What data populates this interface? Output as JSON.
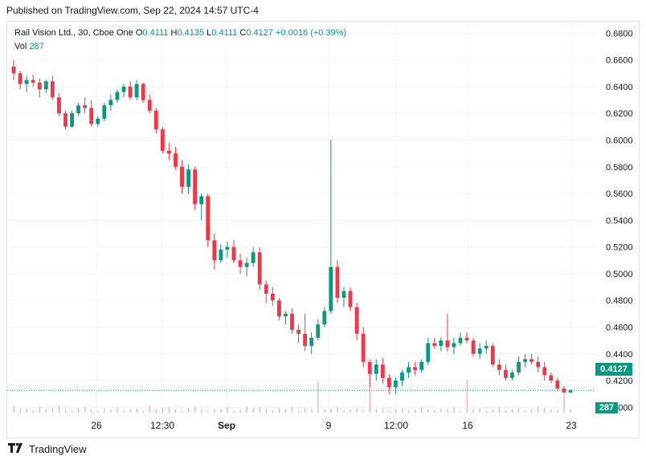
{
  "header": {
    "published": "Published on TradingView.com, Sep 22, 2024 14:57 UTC-4"
  },
  "legend": {
    "symbol": "Rail Vision Ltd., 30, Cboe One",
    "o_label": "O",
    "o_value": "0.4111",
    "h_label": "H",
    "h_value": "0.4135",
    "l_label": "L",
    "l_value": "0.4111",
    "c_label": "C",
    "c_value": "0.4127",
    "change": "+0.0016 (+0.39%)",
    "vol_label": "Vol",
    "vol_value": "287"
  },
  "badges": {
    "last_price": "0.4127",
    "last_volume": "287"
  },
  "footer": {
    "brand": "TradingView",
    "logo": "tradingview-logo-icon"
  },
  "colors": {
    "up": "#089981",
    "down": "#f23645",
    "grid": "#f0f3fa",
    "axis_text": "#131722"
  },
  "chart_data": {
    "type": "candlestick",
    "y_axis": {
      "ticks": [
        "0.6800",
        "0.6600",
        "0.6400",
        "0.6200",
        "0.6000",
        "0.5800",
        "0.5600",
        "0.5400",
        "0.5200",
        "0.5000",
        "0.4800",
        "0.4600",
        "0.4400",
        "0.4200",
        "0.4000"
      ],
      "ylim": [
        0.396,
        0.688
      ]
    },
    "x_axis": {
      "ticks": [
        "26",
        "12:30",
        "Sep",
        "9",
        "12:00",
        "16",
        "23"
      ]
    },
    "last_close": 0.4127,
    "candles": [
      [
        0.655,
        0.66,
        0.645,
        0.65
      ],
      [
        0.65,
        0.652,
        0.638,
        0.642
      ],
      [
        0.642,
        0.648,
        0.636,
        0.645
      ],
      [
        0.645,
        0.649,
        0.64,
        0.643
      ],
      [
        0.643,
        0.646,
        0.632,
        0.638
      ],
      [
        0.638,
        0.645,
        0.635,
        0.644
      ],
      [
        0.644,
        0.648,
        0.63,
        0.632
      ],
      [
        0.632,
        0.635,
        0.618,
        0.62
      ],
      [
        0.62,
        0.622,
        0.608,
        0.61
      ],
      [
        0.61,
        0.622,
        0.609,
        0.62
      ],
      [
        0.62,
        0.628,
        0.618,
        0.626
      ],
      [
        0.626,
        0.632,
        0.62,
        0.624
      ],
      [
        0.624,
        0.63,
        0.61,
        0.612
      ],
      [
        0.612,
        0.618,
        0.61,
        0.616
      ],
      [
        0.616,
        0.628,
        0.614,
        0.626
      ],
      [
        0.626,
        0.634,
        0.622,
        0.63
      ],
      [
        0.63,
        0.638,
        0.628,
        0.636
      ],
      [
        0.636,
        0.642,
        0.632,
        0.64
      ],
      [
        0.64,
        0.644,
        0.63,
        0.632
      ],
      [
        0.632,
        0.645,
        0.63,
        0.642
      ],
      [
        0.642,
        0.643,
        0.628,
        0.63
      ],
      [
        0.63,
        0.634,
        0.62,
        0.622
      ],
      [
        0.622,
        0.624,
        0.605,
        0.608
      ],
      [
        0.608,
        0.61,
        0.59,
        0.592
      ],
      [
        0.592,
        0.598,
        0.585,
        0.59
      ],
      [
        0.59,
        0.595,
        0.578,
        0.58
      ],
      [
        0.58,
        0.585,
        0.56,
        0.565
      ],
      [
        0.565,
        0.582,
        0.56,
        0.578
      ],
      [
        0.578,
        0.58,
        0.548,
        0.552
      ],
      [
        0.552,
        0.56,
        0.54,
        0.558
      ],
      [
        0.558,
        0.56,
        0.52,
        0.525
      ],
      [
        0.525,
        0.53,
        0.503,
        0.51
      ],
      [
        0.51,
        0.522,
        0.508,
        0.518
      ],
      [
        0.518,
        0.524,
        0.512,
        0.52
      ],
      [
        0.52,
        0.525,
        0.508,
        0.51
      ],
      [
        0.51,
        0.515,
        0.5,
        0.505
      ],
      [
        0.505,
        0.512,
        0.498,
        0.508
      ],
      [
        0.508,
        0.52,
        0.505,
        0.516
      ],
      [
        0.516,
        0.52,
        0.488,
        0.492
      ],
      [
        0.492,
        0.495,
        0.478,
        0.485
      ],
      [
        0.485,
        0.49,
        0.476,
        0.48
      ],
      [
        0.48,
        0.482,
        0.465,
        0.468
      ],
      [
        0.468,
        0.472,
        0.462,
        0.47
      ],
      [
        0.47,
        0.474,
        0.455,
        0.458
      ],
      [
        0.458,
        0.462,
        0.448,
        0.455
      ],
      [
        0.455,
        0.47,
        0.442,
        0.446
      ],
      [
        0.446,
        0.456,
        0.44,
        0.452
      ],
      [
        0.452,
        0.466,
        0.45,
        0.462
      ],
      [
        0.462,
        0.475,
        0.46,
        0.472
      ],
      [
        0.472,
        0.6,
        0.47,
        0.505
      ],
      [
        0.505,
        0.51,
        0.478,
        0.482
      ],
      [
        0.482,
        0.49,
        0.475,
        0.487
      ],
      [
        0.487,
        0.49,
        0.472,
        0.475
      ],
      [
        0.475,
        0.478,
        0.45,
        0.455
      ],
      [
        0.455,
        0.46,
        0.43,
        0.434
      ],
      [
        0.434,
        0.436,
        0.415,
        0.425
      ],
      [
        0.425,
        0.436,
        0.42,
        0.432
      ],
      [
        0.432,
        0.437,
        0.418,
        0.422
      ],
      [
        0.422,
        0.425,
        0.41,
        0.415
      ],
      [
        0.415,
        0.422,
        0.41,
        0.42
      ],
      [
        0.42,
        0.428,
        0.416,
        0.426
      ],
      [
        0.426,
        0.434,
        0.422,
        0.43
      ],
      [
        0.43,
        0.434,
        0.424,
        0.428
      ],
      [
        0.428,
        0.436,
        0.426,
        0.434
      ],
      [
        0.434,
        0.452,
        0.432,
        0.448
      ],
      [
        0.448,
        0.452,
        0.444,
        0.446
      ],
      [
        0.446,
        0.452,
        0.442,
        0.45
      ],
      [
        0.45,
        0.47,
        0.442,
        0.445
      ],
      [
        0.445,
        0.452,
        0.44,
        0.448
      ],
      [
        0.448,
        0.456,
        0.446,
        0.452
      ],
      [
        0.452,
        0.456,
        0.448,
        0.45
      ],
      [
        0.45,
        0.452,
        0.438,
        0.44
      ],
      [
        0.44,
        0.448,
        0.436,
        0.444
      ],
      [
        0.444,
        0.45,
        0.44,
        0.446
      ],
      [
        0.446,
        0.448,
        0.43,
        0.432
      ],
      [
        0.432,
        0.436,
        0.424,
        0.428
      ],
      [
        0.428,
        0.432,
        0.42,
        0.422
      ],
      [
        0.422,
        0.428,
        0.42,
        0.426
      ],
      [
        0.426,
        0.438,
        0.424,
        0.434
      ],
      [
        0.434,
        0.44,
        0.43,
        0.436
      ],
      [
        0.436,
        0.44,
        0.432,
        0.434
      ],
      [
        0.434,
        0.438,
        0.426,
        0.43
      ],
      [
        0.43,
        0.434,
        0.42,
        0.424
      ],
      [
        0.424,
        0.426,
        0.418,
        0.42
      ],
      [
        0.42,
        0.422,
        0.412,
        0.414
      ],
      [
        0.414,
        0.416,
        0.411,
        0.4111
      ],
      [
        0.4111,
        0.4135,
        0.4111,
        0.4127
      ]
    ],
    "volume": [
      6,
      3,
      4,
      2,
      5,
      3,
      4,
      6,
      3,
      2,
      4,
      5,
      3,
      2,
      4,
      3,
      5,
      2,
      3,
      4,
      2,
      6,
      3,
      4,
      5,
      3,
      2,
      4,
      5,
      3,
      2,
      4,
      3,
      5,
      2,
      3,
      6,
      4,
      5,
      3,
      2,
      4,
      3,
      5,
      2,
      4,
      3,
      28,
      3,
      4,
      5,
      2,
      3,
      4,
      2,
      40,
      3,
      4,
      2,
      3,
      4,
      2,
      3,
      5,
      3,
      2,
      4,
      3,
      5,
      2,
      30,
      3,
      4,
      2,
      3,
      5,
      2,
      3,
      4,
      2,
      3,
      5,
      4,
      3,
      2,
      18,
      3
    ]
  }
}
